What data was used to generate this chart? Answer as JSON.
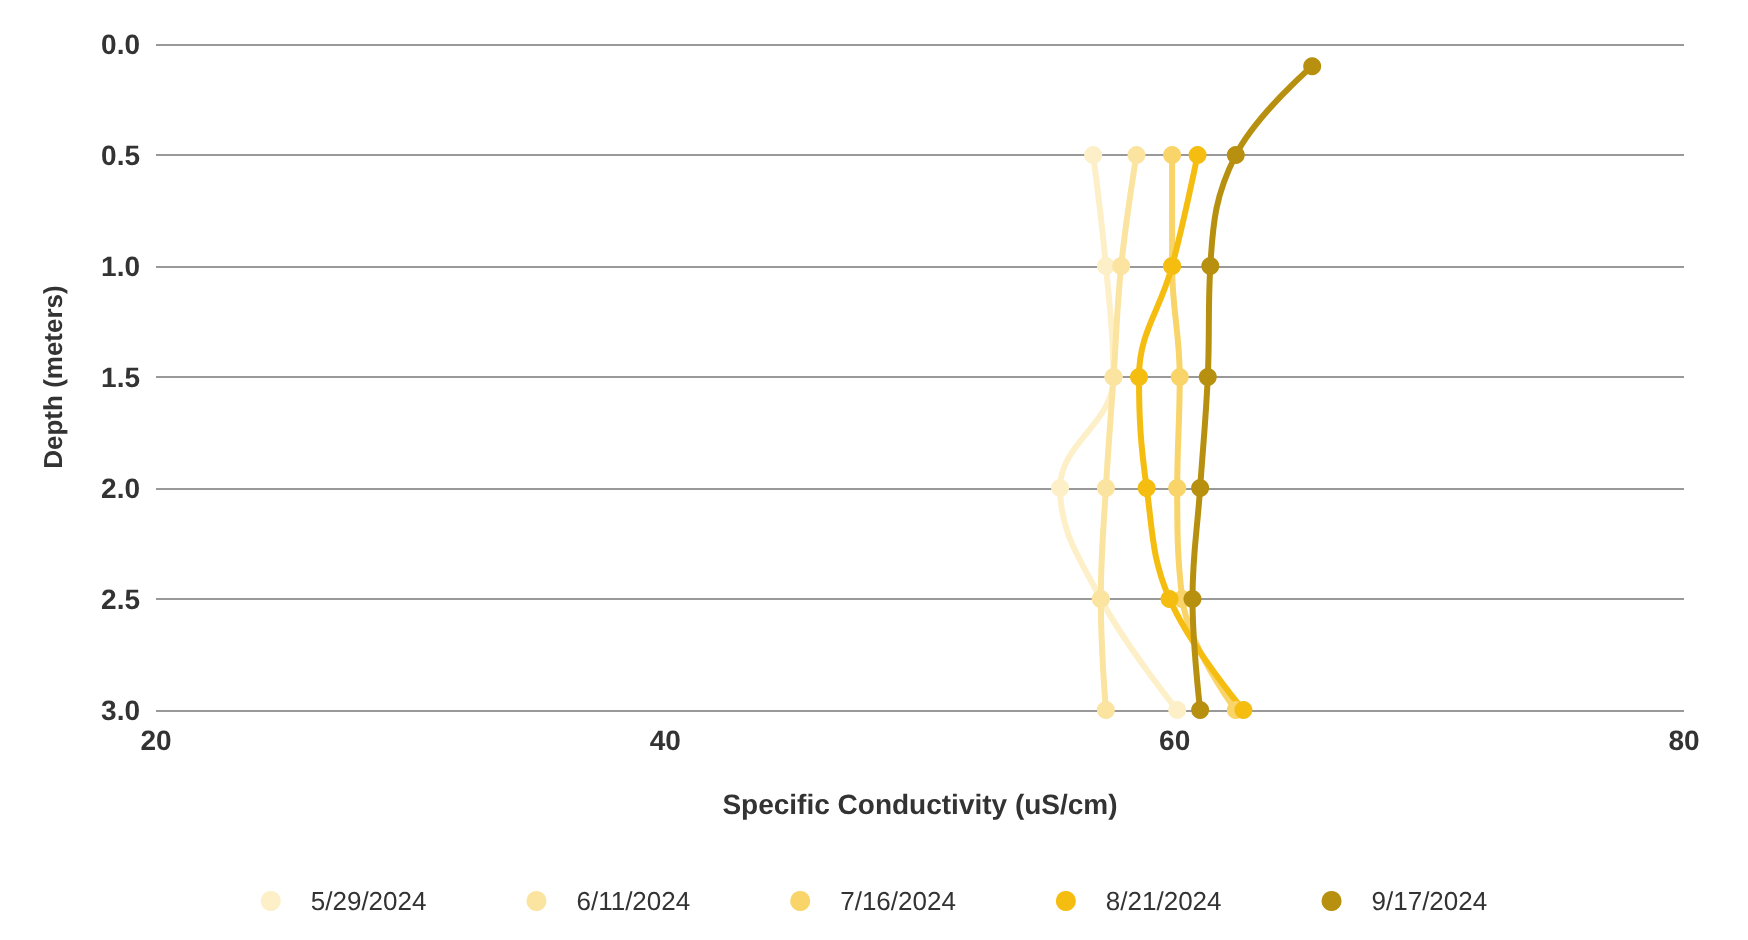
{
  "chart_data": {
    "type": "line",
    "xlabel": "Specific Conductivity (uS/cm)",
    "ylabel": "Depth (meters)",
    "xlim": [
      20,
      80
    ],
    "xticks": [
      20,
      40,
      60,
      80
    ],
    "ylim": [
      3.0,
      0.0
    ],
    "yticks": [
      {
        "value": 0,
        "label": "0.0"
      },
      {
        "value": 0.5,
        "label": "0.5"
      },
      {
        "value": 1,
        "label": "1.0"
      },
      {
        "value": 1.5,
        "label": "1.5"
      },
      {
        "value": 2,
        "label": "2.0"
      },
      {
        "value": 2.5,
        "label": "2.5"
      },
      {
        "value": 3,
        "label": "3.0"
      }
    ],
    "grid": "y",
    "legend": "bottom",
    "marker": "circle",
    "line_style": "solid",
    "series": [
      {
        "name": "5/29/2024",
        "color": "#fdf0c8",
        "x": [
          56.8,
          57.3,
          57.6,
          55.5,
          57.1,
          60.1
        ],
        "values": [
          0.5,
          1.0,
          1.5,
          2.0,
          2.5,
          3.0
        ]
      },
      {
        "name": "6/11/2024",
        "color": "#fbe3a0",
        "x": [
          58.5,
          57.9,
          57.6,
          57.3,
          57.1,
          57.3
        ],
        "values": [
          0.5,
          1.0,
          1.5,
          2.0,
          2.5,
          3.0
        ]
      },
      {
        "name": "7/16/2024",
        "color": "#f9d468",
        "x": [
          59.9,
          59.9,
          60.2,
          60.1,
          60.3,
          62.4
        ],
        "values": [
          0.5,
          1.0,
          1.5,
          2.0,
          2.5,
          3.0
        ]
      },
      {
        "name": "8/21/2024",
        "color": "#f5bd10",
        "x": [
          60.9,
          59.9,
          58.6,
          58.9,
          59.8,
          62.7
        ],
        "values": [
          0.5,
          1.0,
          1.5,
          2.0,
          2.5,
          3.0
        ]
      },
      {
        "name": "9/17/2024",
        "color": "#b8900f",
        "x": [
          65.4,
          62.4,
          61.4,
          61.3,
          61.0,
          60.7,
          61.0
        ],
        "values": [
          0.1,
          0.5,
          1.0,
          1.5,
          2.0,
          2.5,
          3.0
        ]
      }
    ]
  }
}
